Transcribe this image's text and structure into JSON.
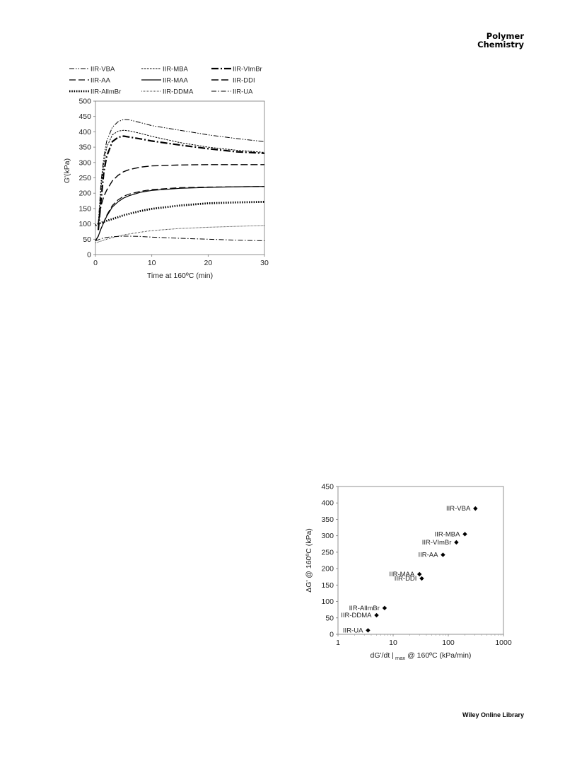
{
  "header": {
    "journal_line1": "Polymer",
    "journal_line2": "Chemistry"
  },
  "footer": {
    "text": "Wiley Online Library"
  },
  "chart_data": [
    {
      "type": "line",
      "xlabel": "Time at 160ºC (min)",
      "ylabel": "G'(kPa)",
      "xlim": [
        0,
        30
      ],
      "ylim": [
        0,
        500
      ],
      "xticks": [
        "0",
        "10",
        "20",
        "30"
      ],
      "yticks": [
        "0",
        "50",
        "100",
        "150",
        "200",
        "250",
        "300",
        "350",
        "400",
        "450",
        "500"
      ],
      "grid": false,
      "legend": "top",
      "series": [
        {
          "name": "IIR-VBA",
          "dash": "7 2 1.5 2 1.5 2",
          "width": 1,
          "x": [
            0.5,
            1,
            1.5,
            2,
            3,
            4,
            5,
            6,
            8,
            10,
            15,
            20,
            25,
            30
          ],
          "y": [
            100,
            240,
            320,
            370,
            415,
            433,
            440,
            439,
            430,
            420,
            405,
            390,
            378,
            368
          ]
        },
        {
          "name": "IIR-MBA",
          "dash": "2.5 1.5",
          "width": 1,
          "x": [
            0.5,
            1,
            1.5,
            2,
            3,
            4,
            5,
            6,
            8,
            10,
            15,
            20,
            25,
            30
          ],
          "y": [
            100,
            220,
            300,
            350,
            390,
            402,
            405,
            403,
            395,
            385,
            365,
            350,
            340,
            333
          ]
        },
        {
          "name": "IIR-VImBr",
          "dash": "10 3 2 3",
          "width": 2.2,
          "x": [
            0.5,
            1,
            1.5,
            2,
            3,
            4,
            5,
            6,
            8,
            10,
            15,
            20,
            25,
            30
          ],
          "y": [
            80,
            180,
            270,
            320,
            368,
            382,
            386,
            383,
            377,
            370,
            357,
            345,
            335,
            330
          ]
        },
        {
          "name": "IIR-AA",
          "dash": "9 4",
          "width": 1.2,
          "x": [
            0,
            0.5,
            1,
            2,
            3,
            4,
            5,
            6,
            8,
            10,
            15,
            20,
            25,
            30
          ],
          "y": [
            45,
            60,
            85,
            128,
            160,
            178,
            190,
            197,
            206,
            212,
            218,
            220,
            221,
            222
          ]
        },
        {
          "name": "IIR-MAA",
          "dash": "",
          "width": 1.2,
          "x": [
            0,
            0.5,
            1,
            2,
            3,
            4,
            5,
            6,
            8,
            10,
            15,
            20,
            25,
            30
          ],
          "y": [
            45,
            60,
            85,
            125,
            155,
            172,
            184,
            192,
            203,
            209,
            216,
            219,
            221,
            222
          ]
        },
        {
          "name": "IIR-DDI",
          "dash": "10 4",
          "width": 1.4,
          "x": [
            0.5,
            1,
            1.5,
            2,
            3,
            4,
            5,
            6,
            8,
            10,
            15,
            20,
            25,
            30
          ],
          "y": [
            100,
            160,
            190,
            210,
            240,
            258,
            270,
            277,
            285,
            289,
            292,
            293,
            293,
            293
          ]
        },
        {
          "name": "IIR-AllmBr",
          "dash": "1.5 1.8",
          "width": 2.8,
          "x": [
            0,
            0.5,
            1,
            2,
            3,
            4,
            5,
            6,
            8,
            10,
            15,
            20,
            25,
            30
          ],
          "y": [
            95,
            100,
            104,
            110,
            116,
            122,
            128,
            133,
            142,
            149,
            160,
            167,
            170,
            172
          ]
        },
        {
          "name": "IIR-DDMA",
          "dash": "0.8 1.2",
          "width": 1,
          "x": [
            0,
            0.5,
            1,
            2,
            3,
            4,
            5,
            6,
            8,
            10,
            15,
            20,
            25,
            30
          ],
          "y": [
            38,
            41,
            44,
            50,
            55,
            60,
            64,
            67,
            73,
            78,
            85,
            89,
            92,
            95
          ]
        },
        {
          "name": "IIR-UA",
          "dash": "7 2.5 1.5 2.5",
          "width": 1,
          "x": [
            0,
            0.5,
            1,
            2,
            3,
            4,
            5,
            6,
            8,
            10,
            15,
            20,
            25,
            30
          ],
          "y": [
            45,
            48,
            52,
            56,
            58,
            59,
            60,
            60,
            59,
            57,
            53,
            50,
            47,
            45
          ]
        }
      ]
    },
    {
      "type": "scatter",
      "xlabel": "dG'/dt",
      "xlabel_subscript": "max",
      "xlabel_suffix": "@ 160ºC (kPa/min)",
      "ylabel": "ΔG' @ 160ºC (kPa)",
      "xscale": "log",
      "xlim": [
        1,
        1000
      ],
      "ylim": [
        0,
        450
      ],
      "xticks": [
        "1",
        "10",
        "100",
        "1000"
      ],
      "yticks": [
        "0",
        "50",
        "100",
        "150",
        "200",
        "250",
        "300",
        "350",
        "400",
        "450"
      ],
      "grid": false,
      "points": [
        {
          "label": "IIR-VBA",
          "x": 310,
          "y": 383
        },
        {
          "label": "IIR-MBA",
          "x": 200,
          "y": 305
        },
        {
          "label": "IIR-VImBr",
          "x": 140,
          "y": 280
        },
        {
          "label": "IIR-AA",
          "x": 80,
          "y": 242
        },
        {
          "label": "IIR-MAA",
          "x": 30,
          "y": 183
        },
        {
          "label": "IIR-DDI",
          "x": 33,
          "y": 170
        },
        {
          "label": "IIR-AllmBr",
          "x": 7,
          "y": 80
        },
        {
          "label": "IIR-DDMA",
          "x": 5,
          "y": 58
        },
        {
          "label": "IIR-UA",
          "x": 3.5,
          "y": 12
        }
      ]
    }
  ]
}
